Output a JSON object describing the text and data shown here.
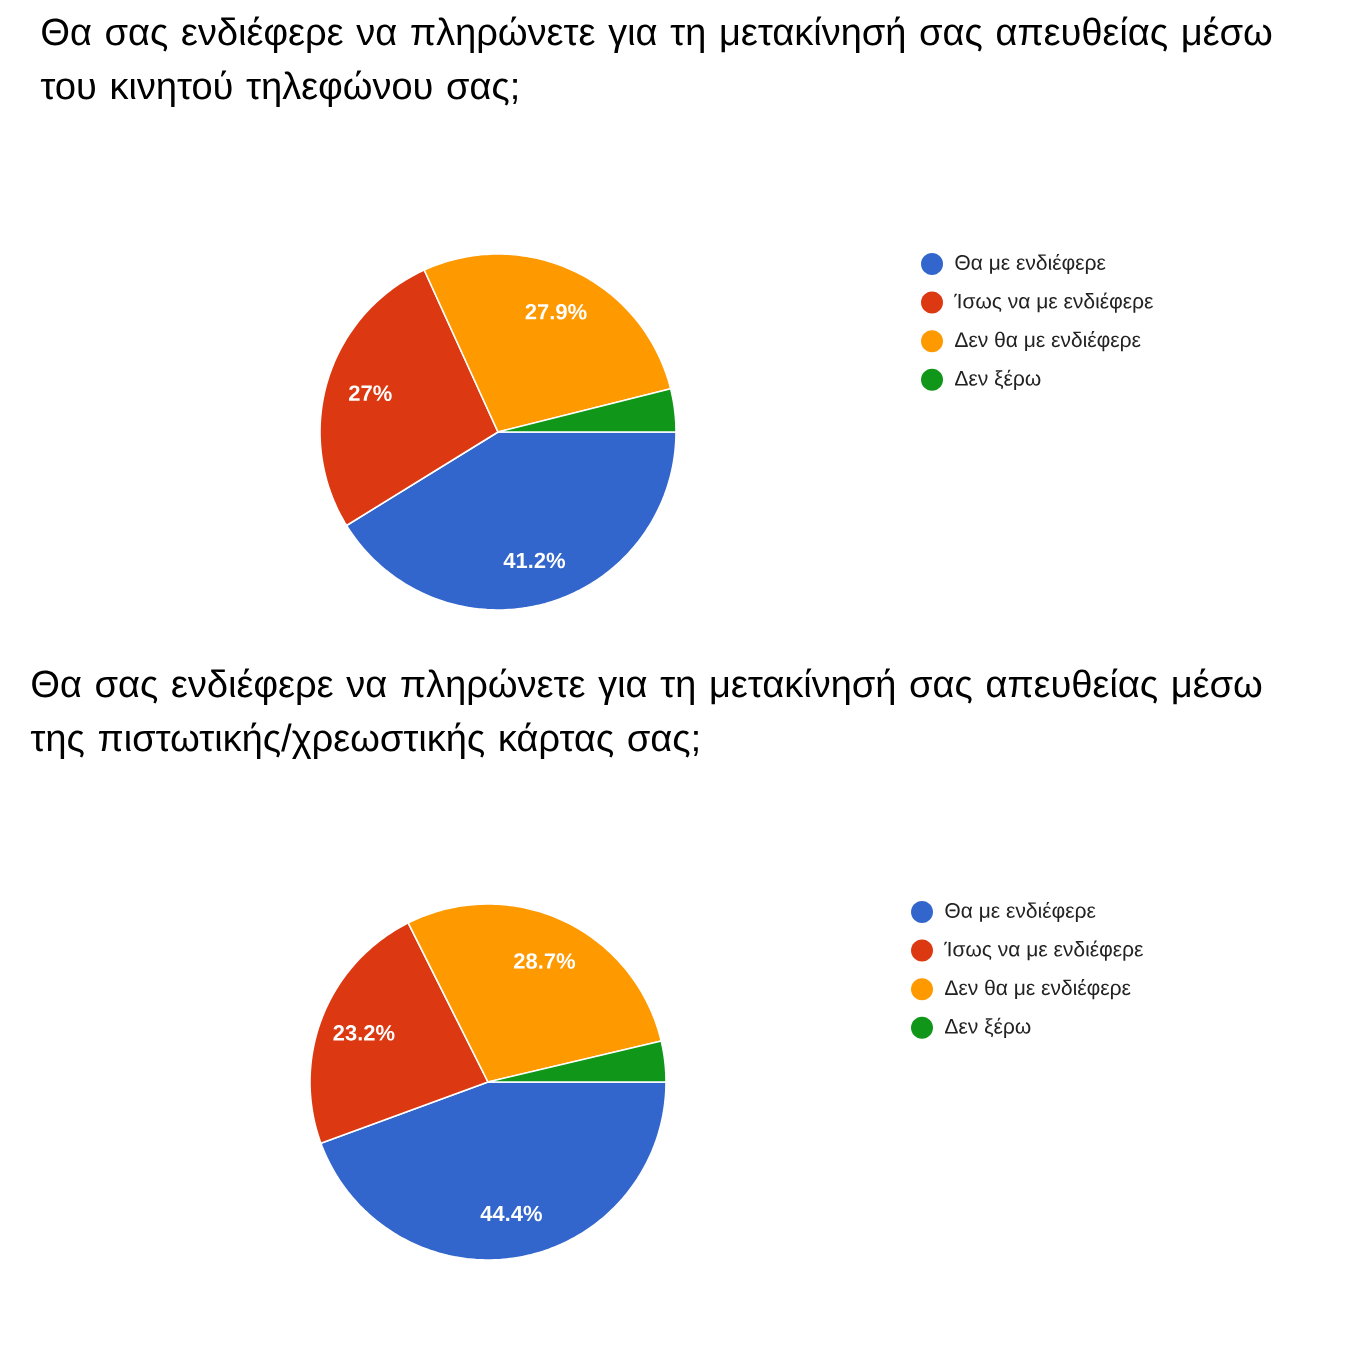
{
  "chart_data": [
    {
      "type": "pie",
      "title": "Θα σας ενδιέφερε να πληρώνετε για τη μετακίνησή σας απευθείας μέσω του κινητού τηλεφώνου σας;",
      "categories": [
        "Θα με ενδιέφερε",
        "Ίσως να με ενδιέφερε",
        "Δεν θα με ενδιέφερε",
        "Δεν ξέρω"
      ],
      "values": [
        41.2,
        27,
        27.9,
        3.9
      ],
      "colors": [
        "#3366cc",
        "#dc3912",
        "#ff9900",
        "#109618"
      ],
      "value_labels": [
        "41.2%",
        "27%",
        "27.9%",
        null
      ],
      "legend": "right"
    },
    {
      "type": "pie",
      "title": "Θα σας ενδιέφερε να πληρώνετε για τη μετακίνησή σας απευθείας μέσω της πιστωτικής/χρεωστικής κάρτας σας;",
      "categories": [
        "Θα με ενδιέφερε",
        "Ίσως να με ενδιέφερε",
        "Δεν θα με ενδιέφερε",
        "Δεν ξέρω"
      ],
      "values": [
        44.4,
        23.2,
        28.7,
        3.7
      ],
      "colors": [
        "#3366cc",
        "#dc3912",
        "#ff9900",
        "#109618"
      ],
      "value_labels": [
        "44.4%",
        "23.2%",
        "28.7%",
        null
      ],
      "legend": "right"
    }
  ]
}
